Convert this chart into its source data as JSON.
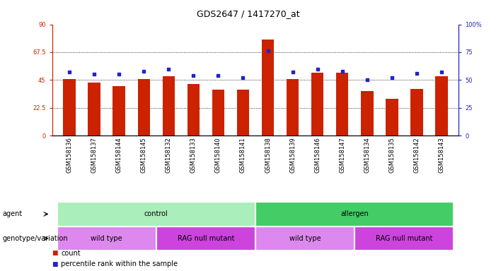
{
  "title": "GDS2647 / 1417270_at",
  "samples": [
    "GSM158136",
    "GSM158137",
    "GSM158144",
    "GSM158145",
    "GSM158132",
    "GSM158133",
    "GSM158140",
    "GSM158141",
    "GSM158138",
    "GSM158139",
    "GSM158146",
    "GSM158147",
    "GSM158134",
    "GSM158135",
    "GSM158142",
    "GSM158143"
  ],
  "counts": [
    46,
    43,
    40,
    46,
    48,
    42,
    37,
    37,
    78,
    46,
    51,
    51,
    36,
    30,
    38,
    48
  ],
  "percentiles": [
    57,
    55,
    55,
    58,
    60,
    54,
    54,
    52,
    76,
    57,
    60,
    58,
    50,
    52,
    56,
    57
  ],
  "bar_color": "#cc2200",
  "dot_color": "#2222cc",
  "left_ylim": [
    0,
    90
  ],
  "right_ylim": [
    0,
    100
  ],
  "left_yticks": [
    0,
    22.5,
    45,
    67.5,
    90
  ],
  "left_yticklabels": [
    "0",
    "22.5",
    "45",
    "67.5",
    "90"
  ],
  "right_yticks": [
    0,
    25,
    50,
    75,
    100
  ],
  "right_yticklabels": [
    "0",
    "25",
    "50",
    "75",
    "100%"
  ],
  "gridlines": [
    22.5,
    45,
    67.5
  ],
  "agent_groups": [
    {
      "label": "control",
      "start": 0,
      "end": 8,
      "color": "#aaeebb"
    },
    {
      "label": "allergen",
      "start": 8,
      "end": 16,
      "color": "#44cc66"
    }
  ],
  "genotype_groups": [
    {
      "label": "wild type",
      "start": 0,
      "end": 4,
      "color": "#dd88ee"
    },
    {
      "label": "RAG null mutant",
      "start": 4,
      "end": 8,
      "color": "#cc44dd"
    },
    {
      "label": "wild type",
      "start": 8,
      "end": 12,
      "color": "#dd88ee"
    },
    {
      "label": "RAG null mutant",
      "start": 12,
      "end": 16,
      "color": "#cc44dd"
    }
  ],
  "legend_count_label": "count",
  "legend_pct_label": "percentile rank within the sample",
  "xlabel_agent": "agent",
  "xlabel_genotype": "genotype/variation",
  "title_fontsize": 9,
  "tick_fontsize": 6,
  "label_fontsize": 7,
  "row_label_fontsize": 7,
  "bar_width": 0.5,
  "xtick_bg": "#d8d8d8"
}
